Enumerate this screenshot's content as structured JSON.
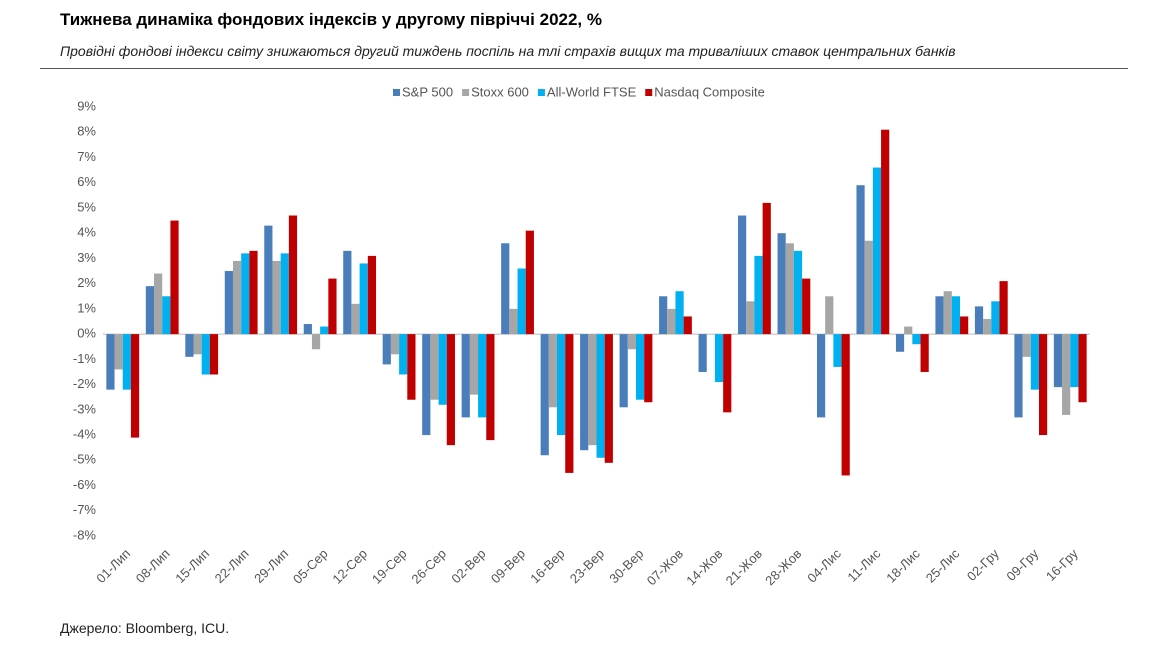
{
  "chart_data": {
    "type": "bar",
    "title": "Тижнева динаміка фондових індексів у другому півріччі 2022, %",
    "subtitle": "Провідні фондові індекси світу знижаються другий тиждень поспіль на тлі страхів вищих та триваліших ставок центральних банків",
    "source": "Джерело: Bloomberg, ICU.",
    "categories": [
      "01-Лип",
      "08-Лип",
      "15-Лип",
      "22-Лип",
      "29-Лип",
      "05-Сер",
      "12-Сер",
      "19-Сер",
      "26-Сер",
      "02-Вер",
      "09-Вер",
      "16-Вер",
      "23-Вер",
      "30-Вер",
      "07-Жов",
      "14-Жов",
      "21-Жов",
      "28-Жов",
      "04-Лис",
      "11-Лис",
      "18-Лис",
      "25-Лис",
      "02-Гру",
      "09-Гру",
      "16-Гру"
    ],
    "series": [
      {
        "name": "S&P 500",
        "color": "#4a7ebb",
        "values": [
          -2.2,
          1.9,
          -0.9,
          2.5,
          4.3,
          0.4,
          3.3,
          -1.2,
          -4.0,
          -3.3,
          3.6,
          -4.8,
          -4.6,
          -2.9,
          1.5,
          -1.5,
          4.7,
          4.0,
          -3.3,
          5.9,
          -0.7,
          1.5,
          1.1,
          -3.3,
          -2.1
        ]
      },
      {
        "name": "Stoxx 600",
        "color": "#a6a6a6",
        "values": [
          -1.4,
          2.4,
          -0.8,
          2.9,
          2.9,
          -0.6,
          1.2,
          -0.8,
          -2.6,
          -2.4,
          1.0,
          -2.9,
          -4.4,
          -0.6,
          1.0,
          0,
          1.3,
          3.6,
          1.5,
          3.7,
          0.3,
          1.7,
          0.6,
          -0.9,
          -3.2
        ]
      },
      {
        "name": "All-World FTSE",
        "color": "#00b0f0",
        "values": [
          -2.2,
          1.5,
          -1.6,
          3.2,
          3.2,
          0.3,
          2.8,
          -1.6,
          -2.8,
          -3.3,
          2.6,
          -4.0,
          -4.9,
          -2.6,
          1.7,
          -1.9,
          3.1,
          3.3,
          -1.3,
          6.6,
          -0.4,
          1.5,
          1.3,
          -2.2,
          -2.1
        ]
      },
      {
        "name": "Nasdaq Composite",
        "color": "#c00000",
        "values": [
          -4.1,
          4.5,
          -1.6,
          3.3,
          4.7,
          2.2,
          3.1,
          -2.6,
          -4.4,
          -4.2,
          4.1,
          -5.5,
          -5.1,
          -2.7,
          0.7,
          -3.1,
          5.2,
          2.2,
          -5.6,
          8.1,
          -1.5,
          0.7,
          2.1,
          -4.0,
          -2.7
        ]
      }
    ],
    "ylim": [
      -8,
      9
    ],
    "yticks": [
      {
        "value": 9,
        "label": "9%"
      },
      {
        "value": 8,
        "label": "8%"
      },
      {
        "value": 7,
        "label": "7%"
      },
      {
        "value": 6,
        "label": "6%"
      },
      {
        "value": 5,
        "label": "5%"
      },
      {
        "value": 4,
        "label": "4%"
      },
      {
        "value": 3,
        "label": "3%"
      },
      {
        "value": 2,
        "label": "2%"
      },
      {
        "value": 1,
        "label": "1%"
      },
      {
        "value": 0,
        "label": "0%"
      },
      {
        "value": -1,
        "label": "-1%"
      },
      {
        "value": -2,
        "label": "-2%"
      },
      {
        "value": -3,
        "label": "-3%"
      },
      {
        "value": -4,
        "label": "-4%"
      },
      {
        "value": -5,
        "label": "-5%"
      },
      {
        "value": -6,
        "label": "-6%"
      },
      {
        "value": -7,
        "label": "-7%"
      },
      {
        "value": -8,
        "label": "-8%"
      }
    ],
    "grid": false
  }
}
